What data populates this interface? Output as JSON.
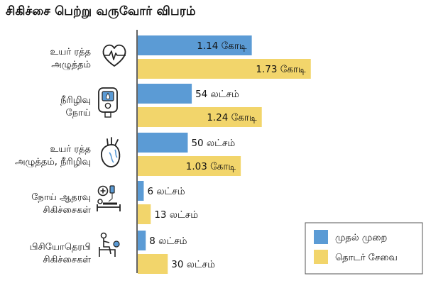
{
  "chart_data": {
    "type": "bar",
    "orientation": "horizontal",
    "title": "சிகிச்சை பெற்று வருவோர் விபரம்",
    "categories": [
      {
        "lines": [
          "உயர் ரத்த",
          "அழுத்தம்"
        ],
        "icon": "heart-pulse-icon"
      },
      {
        "lines": [
          "நீரிழிவு",
          "நோய்"
        ],
        "icon": "glucose-meter-icon"
      },
      {
        "lines": [
          "உயர் ரத்த",
          "அழுத்தம், நீரிழிவு"
        ],
        "icon": "anatomical-heart-icon"
      },
      {
        "lines": [
          "நோய் ஆதரவு",
          "சிகிச்சைகள்"
        ],
        "icon": "patient-bed-icon"
      },
      {
        "lines": [
          "பிசியோதெரபி",
          "சிகிச்சைகள்"
        ],
        "icon": "physiotherapy-icon"
      }
    ],
    "series": [
      {
        "name": "முதல் முறை",
        "color": "#5b9bd5",
        "values_lakh": [
          114,
          54,
          50,
          6,
          8
        ],
        "labels": [
          "1.14 கோடி",
          "54 லட்சம்",
          "50 லட்சம்",
          "6 லட்சம்",
          "8 லட்சம்"
        ]
      },
      {
        "name": "தொடர் சேவை",
        "color": "#f2d56b",
        "values_lakh": [
          173,
          124,
          103,
          13,
          30
        ],
        "labels": [
          "1.73 கோடி",
          "1.24 கோடி",
          "1.03 கோடி",
          "13 லட்சம்",
          "30 லட்சம்"
        ]
      }
    ],
    "legend_position": "bottom-right",
    "grid": false
  }
}
